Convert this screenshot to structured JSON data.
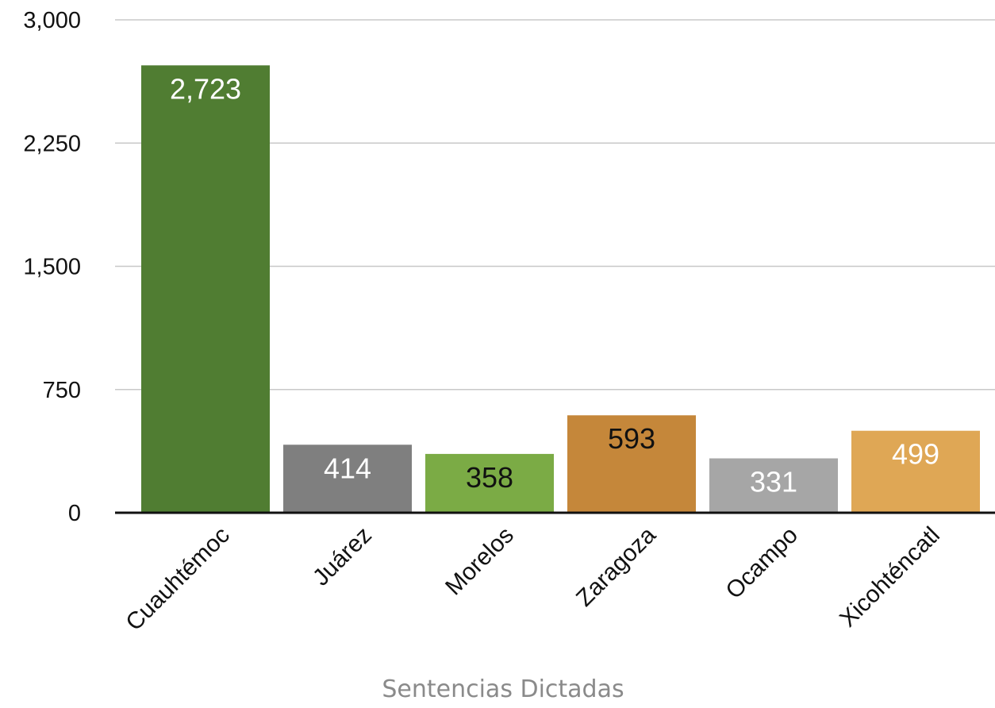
{
  "chart_data": {
    "type": "bar",
    "title": "",
    "xlabel": "Sentencias Dictadas",
    "ylabel": "",
    "categories": [
      "Cuauhtémoc",
      "Juárez",
      "Morelos",
      "Zaragoza",
      "Ocampo",
      "Xicohténcatl"
    ],
    "values": [
      2723,
      414,
      358,
      593,
      331,
      499
    ],
    "data_labels": [
      "2,723",
      "414",
      "358",
      "593",
      "331",
      "499"
    ],
    "bar_colors": [
      "#507d32",
      "#7f7f7f",
      "#7bab45",
      "#c5873a",
      "#a6a6a6",
      "#dfa755"
    ],
    "label_colors": [
      "#ffffff",
      "#ffffff",
      "#111111",
      "#111111",
      "#ffffff",
      "#ffffff"
    ],
    "ylim": [
      0,
      3000
    ],
    "yticks": [
      0,
      750,
      1500,
      2250,
      3000
    ],
    "ytick_labels": [
      "0",
      "750",
      "1,500",
      "2,250",
      "3,000"
    ],
    "grid": "horizontal",
    "legend": "none"
  }
}
